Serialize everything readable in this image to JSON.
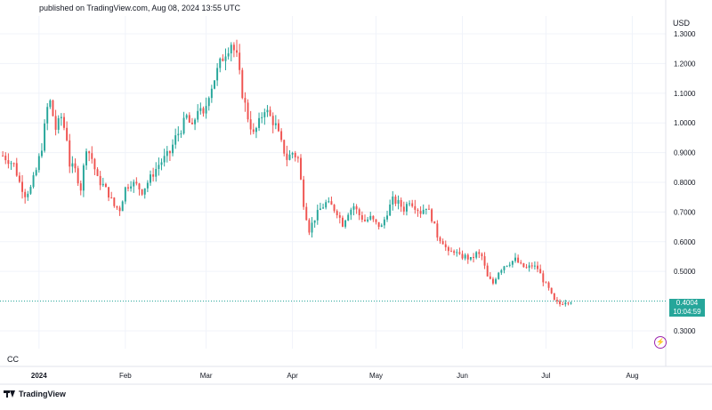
{
  "header": {
    "published": "published on TradingView.com, Aug 08, 2024 13:55 UTC"
  },
  "symbol": "CC",
  "currency": "USD",
  "brand": "TradingView",
  "last_price": {
    "value": "0.4004",
    "countdown": "10:04:59",
    "color": "#26a69a"
  },
  "colors": {
    "up": "#26a69a",
    "down": "#ef5350",
    "grid": "#f0f3fa"
  },
  "icons": {
    "bolt": "lightning-icon"
  },
  "chart_data": {
    "type": "candlestick",
    "y_ticks": [
      "1.3000",
      "1.2000",
      "1.1000",
      "1.0000",
      "0.9000",
      "0.8000",
      "0.7000",
      "0.6000",
      "0.5000",
      "0.3000"
    ],
    "y_tick_values": [
      1.3,
      1.2,
      1.1,
      1.0,
      0.9,
      0.8,
      0.7,
      0.6,
      0.5,
      0.3
    ],
    "ylim": [
      0.24,
      1.36
    ],
    "x_labels": [
      {
        "label": "2024",
        "day": 9
      },
      {
        "label": "Feb",
        "day": 40
      },
      {
        "label": "Mar",
        "day": 69
      },
      {
        "label": "Apr",
        "day": 100
      },
      {
        "label": "May",
        "day": 130
      },
      {
        "label": "Jun",
        "day": 161
      },
      {
        "label": "Jul",
        "day": 191
      },
      {
        "label": "Aug",
        "day": 222
      }
    ],
    "xlim": [
      -5,
      234
    ],
    "close_anchors": [
      [
        -4,
        0.89
      ],
      [
        0,
        0.86
      ],
      [
        2,
        0.8
      ],
      [
        4,
        0.76
      ],
      [
        6,
        0.78
      ],
      [
        8,
        0.84
      ],
      [
        10,
        0.92
      ],
      [
        12,
        1.05
      ],
      [
        13,
        1.07
      ],
      [
        15,
        0.98
      ],
      [
        17,
        1.02
      ],
      [
        19,
        0.95
      ],
      [
        20,
        0.86
      ],
      [
        22,
        0.84
      ],
      [
        24,
        0.78
      ],
      [
        26,
        0.92
      ],
      [
        28,
        0.88
      ],
      [
        30,
        0.81
      ],
      [
        32,
        0.79
      ],
      [
        34,
        0.76
      ],
      [
        36,
        0.72
      ],
      [
        38,
        0.71
      ],
      [
        40,
        0.78
      ],
      [
        42,
        0.8
      ],
      [
        44,
        0.79
      ],
      [
        46,
        0.77
      ],
      [
        48,
        0.8
      ],
      [
        50,
        0.83
      ],
      [
        52,
        0.86
      ],
      [
        54,
        0.88
      ],
      [
        56,
        0.9
      ],
      [
        58,
        0.95
      ],
      [
        60,
        0.98
      ],
      [
        62,
        1.02
      ],
      [
        64,
        0.98
      ],
      [
        66,
        1.05
      ],
      [
        68,
        1.02
      ],
      [
        70,
        1.1
      ],
      [
        72,
        1.15
      ],
      [
        74,
        1.2
      ],
      [
        76,
        1.24
      ],
      [
        78,
        1.27
      ],
      [
        80,
        1.22
      ],
      [
        82,
        1.1
      ],
      [
        84,
        1.02
      ],
      [
        86,
        0.96
      ],
      [
        88,
        1.0
      ],
      [
        90,
        1.05
      ],
      [
        92,
        1.02
      ],
      [
        94,
        0.99
      ],
      [
        96,
        0.93
      ],
      [
        98,
        0.88
      ],
      [
        100,
        0.9
      ],
      [
        102,
        0.88
      ],
      [
        104,
        0.73
      ],
      [
        106,
        0.64
      ],
      [
        108,
        0.68
      ],
      [
        110,
        0.71
      ],
      [
        112,
        0.73
      ],
      [
        114,
        0.72
      ],
      [
        116,
        0.7
      ],
      [
        118,
        0.66
      ],
      [
        120,
        0.7
      ],
      [
        122,
        0.72
      ],
      [
        124,
        0.69
      ],
      [
        126,
        0.67
      ],
      [
        128,
        0.68
      ],
      [
        130,
        0.66
      ],
      [
        132,
        0.65
      ],
      [
        134,
        0.7
      ],
      [
        136,
        0.74
      ],
      [
        138,
        0.73
      ],
      [
        140,
        0.71
      ],
      [
        142,
        0.74
      ],
      [
        144,
        0.72
      ],
      [
        146,
        0.7
      ],
      [
        148,
        0.72
      ],
      [
        150,
        0.68
      ],
      [
        152,
        0.62
      ],
      [
        154,
        0.6
      ],
      [
        156,
        0.56
      ],
      [
        158,
        0.57
      ],
      [
        160,
        0.55
      ],
      [
        162,
        0.55
      ],
      [
        164,
        0.54
      ],
      [
        166,
        0.56
      ],
      [
        168,
        0.55
      ],
      [
        170,
        0.48
      ],
      [
        172,
        0.46
      ],
      [
        174,
        0.5
      ],
      [
        176,
        0.52
      ],
      [
        178,
        0.53
      ],
      [
        180,
        0.54
      ],
      [
        182,
        0.52
      ],
      [
        184,
        0.51
      ],
      [
        186,
        0.52
      ],
      [
        188,
        0.51
      ],
      [
        190,
        0.47
      ],
      [
        192,
        0.44
      ],
      [
        194,
        0.4
      ],
      [
        196,
        0.39
      ],
      [
        198,
        0.4
      ],
      [
        200,
        0.4
      ]
    ]
  }
}
